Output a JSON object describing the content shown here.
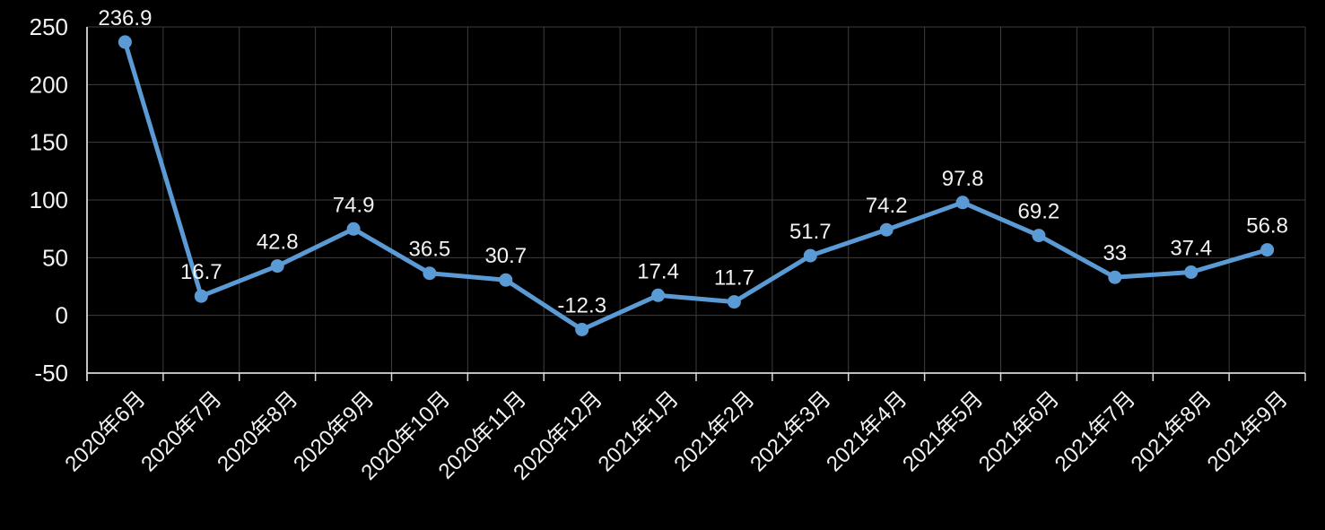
{
  "chart_data": {
    "type": "line",
    "title": "",
    "xlabel": "",
    "ylabel": "",
    "categories": [
      "2020年6月",
      "2020年7月",
      "2020年8月",
      "2020年9月",
      "2020年10月",
      "2020年11月",
      "2020年12月",
      "2021年1月",
      "2021年2月",
      "2021年3月",
      "2021年4月",
      "2021年5月",
      "2021年6月",
      "2021年7月",
      "2021年8月",
      "2021年9月"
    ],
    "series": [
      {
        "name": "",
        "values": [
          236.9,
          16.7,
          42.8,
          74.9,
          36.5,
          30.7,
          -12.3,
          17.4,
          11.7,
          51.7,
          74.2,
          97.8,
          69.2,
          33,
          37.4,
          56.8
        ],
        "point_labels": [
          "236.9",
          "16.7",
          "42.8",
          "74.9",
          "36.5",
          "30.7",
          "-12.3",
          "17.4",
          "11.7",
          "51.7",
          "74.2",
          "97.8",
          "69.2",
          "33",
          "37.4",
          "56.8"
        ]
      }
    ],
    "ylim": [
      -50,
      250
    ],
    "y_ticks": [
      250,
      200,
      150,
      100,
      50,
      0,
      -50
    ],
    "grid": true,
    "legend_position": "none",
    "marker": "circle",
    "data_labels_shown": true,
    "x_label_rotation_deg": 45,
    "colors": {
      "background": "#000000",
      "line": "#5B9BD5",
      "marker": "#5B9BD5",
      "gridline": "#3d3d3d",
      "axis_line": "#d9d9d9",
      "tick_text": "#f2f2f2",
      "data_label_text": "#f2f2f2"
    }
  }
}
